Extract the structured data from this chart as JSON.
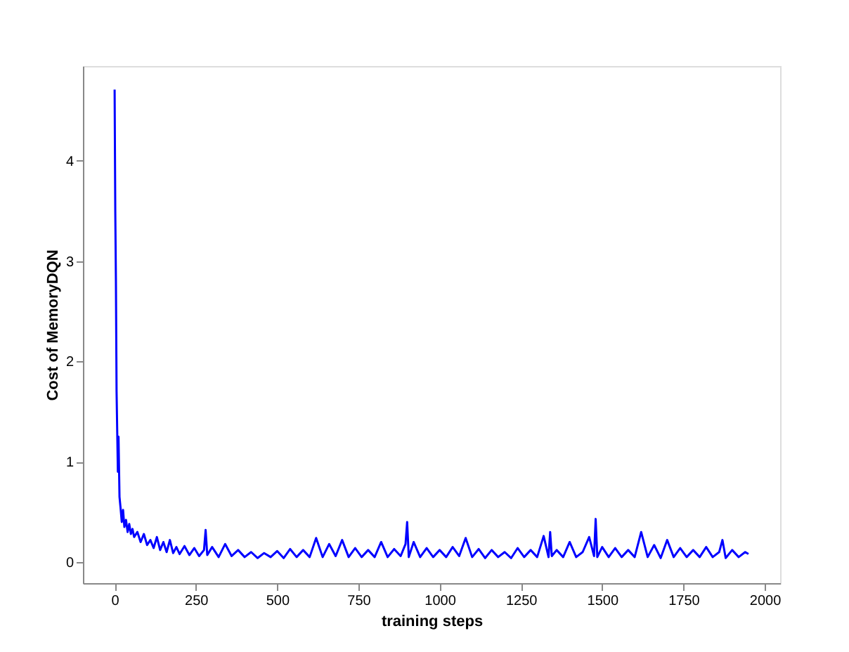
{
  "chart_data": {
    "type": "line",
    "xlabel": "training steps",
    "ylabel": "Cost of MemoryDQN",
    "xlim": [
      -97.5,
      2047.5
    ],
    "ylim": [
      -0.21,
      4.945
    ],
    "xticks": [
      0,
      250,
      500,
      750,
      1000,
      1250,
      1500,
      1750,
      2000
    ],
    "yticks": [
      0,
      1,
      2,
      3,
      4
    ],
    "grid": false,
    "marker": "none",
    "line_style": "solid",
    "series": [
      {
        "color": "#0000ff",
        "x": [
          0,
          2,
          4,
          6,
          8,
          10,
          12,
          15,
          18,
          22,
          26,
          30,
          35,
          40,
          45,
          50,
          55,
          60,
          70,
          80,
          90,
          100,
          110,
          120,
          130,
          140,
          150,
          160,
          170,
          180,
          190,
          200,
          215,
          230,
          245,
          260,
          275,
          280,
          285,
          300,
          320,
          340,
          360,
          380,
          400,
          420,
          440,
          460,
          480,
          500,
          520,
          540,
          560,
          580,
          600,
          620,
          640,
          660,
          680,
          700,
          720,
          740,
          760,
          780,
          800,
          820,
          840,
          860,
          880,
          895,
          900,
          905,
          920,
          940,
          960,
          980,
          1000,
          1020,
          1040,
          1060,
          1080,
          1100,
          1120,
          1140,
          1160,
          1180,
          1200,
          1220,
          1240,
          1260,
          1280,
          1300,
          1320,
          1335,
          1340,
          1345,
          1360,
          1380,
          1400,
          1420,
          1440,
          1460,
          1475,
          1480,
          1485,
          1500,
          1520,
          1540,
          1560,
          1580,
          1600,
          1620,
          1640,
          1660,
          1680,
          1700,
          1720,
          1740,
          1760,
          1780,
          1800,
          1820,
          1840,
          1860,
          1870,
          1880,
          1900,
          1920,
          1940,
          1950
        ],
        "values": [
          4.71,
          3.5,
          2.8,
          1.7,
          1.3,
          0.9,
          1.25,
          0.65,
          0.55,
          0.4,
          0.52,
          0.35,
          0.42,
          0.3,
          0.38,
          0.28,
          0.33,
          0.25,
          0.3,
          0.2,
          0.28,
          0.17,
          0.22,
          0.14,
          0.25,
          0.12,
          0.2,
          0.1,
          0.22,
          0.09,
          0.15,
          0.08,
          0.16,
          0.07,
          0.14,
          0.06,
          0.12,
          0.32,
          0.07,
          0.15,
          0.05,
          0.18,
          0.06,
          0.12,
          0.05,
          0.1,
          0.04,
          0.09,
          0.05,
          0.11,
          0.04,
          0.13,
          0.05,
          0.12,
          0.05,
          0.24,
          0.05,
          0.18,
          0.06,
          0.22,
          0.05,
          0.14,
          0.05,
          0.12,
          0.05,
          0.2,
          0.05,
          0.13,
          0.06,
          0.18,
          0.4,
          0.05,
          0.2,
          0.05,
          0.14,
          0.05,
          0.12,
          0.05,
          0.15,
          0.06,
          0.24,
          0.05,
          0.13,
          0.04,
          0.12,
          0.05,
          0.1,
          0.04,
          0.14,
          0.05,
          0.12,
          0.05,
          0.26,
          0.05,
          0.3,
          0.06,
          0.12,
          0.05,
          0.2,
          0.05,
          0.1,
          0.25,
          0.06,
          0.43,
          0.05,
          0.15,
          0.05,
          0.14,
          0.05,
          0.12,
          0.05,
          0.3,
          0.05,
          0.17,
          0.04,
          0.22,
          0.05,
          0.14,
          0.05,
          0.12,
          0.05,
          0.15,
          0.05,
          0.1,
          0.22,
          0.04,
          0.12,
          0.05,
          0.1,
          0.08
        ]
      }
    ]
  }
}
